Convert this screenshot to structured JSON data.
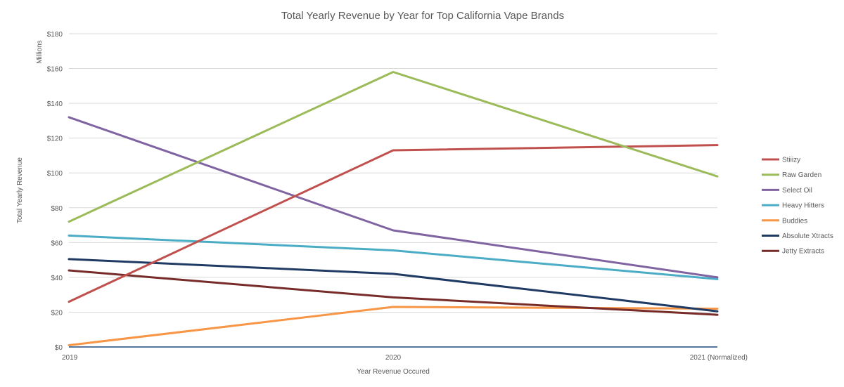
{
  "chart_data": {
    "type": "line",
    "title": "Total Yearly Revenue by Year for Top California Vape Brands",
    "xlabel": "Year Revenue Occured",
    "ylabel": "Total Yearly Revenue",
    "yunit_label": "Millions",
    "categories": [
      "2019",
      "2020",
      "2021 (Normalized)"
    ],
    "ylim": [
      0,
      180
    ],
    "yticks": [
      "$0",
      "$20",
      "$40",
      "$60",
      "$80",
      "$100",
      "$120",
      "$140",
      "$160",
      "$180"
    ],
    "ytick_values": [
      0,
      20,
      40,
      60,
      80,
      100,
      120,
      140,
      160,
      180
    ],
    "grid": true,
    "legend_position": "right",
    "series": [
      {
        "name": "Stiiizy",
        "color": "#c0504d",
        "values": [
          26,
          113,
          116
        ]
      },
      {
        "name": "Raw Garden",
        "color": "#9bbb59",
        "values": [
          72,
          158,
          98
        ]
      },
      {
        "name": "Select Oil",
        "color": "#8064a2",
        "values": [
          132,
          67,
          40
        ]
      },
      {
        "name": "Heavy Hitters",
        "color": "#4bacc6",
        "values": [
          64,
          55.5,
          39
        ]
      },
      {
        "name": "Buddies",
        "color": "#f79646",
        "values": [
          1,
          23,
          22
        ]
      },
      {
        "name": "Absolute Xtracts",
        "color": "#1f3b63",
        "values": [
          50.5,
          42,
          20.5
        ]
      },
      {
        "name": "Jetty Extracts",
        "color": "#772c2a",
        "values": [
          44,
          28.5,
          18.5
        ]
      }
    ],
    "baseline_series": {
      "color": "#1f497d",
      "values": [
        0,
        0,
        0
      ]
    }
  }
}
